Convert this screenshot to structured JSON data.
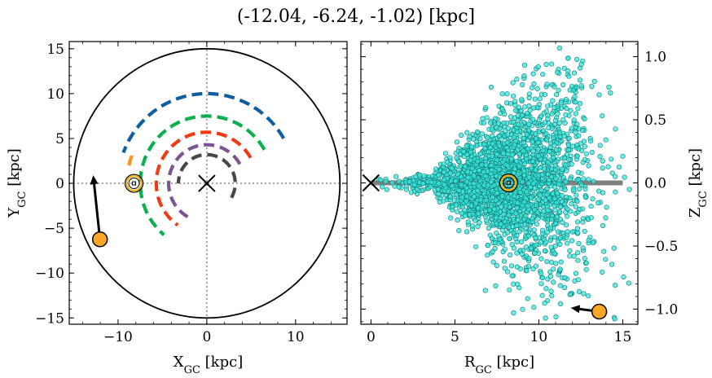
{
  "title": "(-12.04, -6.24, -1.02) [kpc]",
  "chart_data": [
    {
      "type": "line",
      "panel": "left",
      "xlabel": "X",
      "xlabel_sub": "GC",
      "xlabel_unit": " [kpc]",
      "ylabel": "Y",
      "ylabel_sub": "GC",
      "ylabel_unit": " [kpc]",
      "xlim": [
        -15.5,
        15.8
      ],
      "ylim": [
        -15.7,
        15.8
      ],
      "xticks": [
        -10,
        0,
        10
      ],
      "xtick_labels": [
        "−10",
        "0",
        "10"
      ],
      "yticks": [
        -15,
        -10,
        -5,
        0,
        5,
        10,
        15
      ],
      "ytick_labels": [
        "−15",
        "−10",
        "−5",
        "0",
        "5",
        "10",
        "15"
      ],
      "boundary_circle": {
        "center": [
          0,
          0
        ],
        "radius": 15,
        "color": "#000000"
      },
      "reference_lines": {
        "x": 0,
        "y": 0,
        "style": "dotted",
        "color": "#888888"
      },
      "galactic_center": {
        "x": 0,
        "y": 0,
        "marker": "x"
      },
      "sun": {
        "x": -8.2,
        "y": 0,
        "marker": "circled-dot",
        "color": "#ffb000"
      },
      "object": {
        "x": -12.04,
        "y": -6.24,
        "color": "#f9a825"
      },
      "object_velocity_arrow": {
        "from": [
          -12.04,
          -6.24
        ],
        "to": [
          -12.8,
          0.9
        ]
      },
      "series": [
        {
          "color": "#0f5fa0",
          "center": [
            0,
            0
          ],
          "radius": 10.0,
          "theta_deg": [
            30,
            160
          ]
        },
        {
          "color": "#0bb04c",
          "center": [
            0,
            0
          ],
          "radius": 7.5,
          "theta_deg": [
            30,
            230
          ]
        },
        {
          "color": "#ef3a16",
          "center": [
            0,
            0
          ],
          "radius": 5.7,
          "theta_deg": [
            30,
            235
          ]
        },
        {
          "color": "#7d5394",
          "center": [
            0,
            0
          ],
          "radius": 4.3,
          "theta_deg": [
            30,
            240
          ]
        },
        {
          "color": "#474747",
          "center": [
            0,
            0
          ],
          "radius": 3.2,
          "theta_deg": [
            -30,
            180
          ]
        },
        {
          "color": "#f7941d",
          "center": [
            0,
            0
          ],
          "radius": 9.0,
          "theta_deg": [
            160,
            167
          ]
        }
      ]
    },
    {
      "type": "scatter",
      "panel": "right",
      "xlabel": "R",
      "xlabel_sub": "GC",
      "xlabel_unit": " [kpc]",
      "ylabel": "Z",
      "ylabel_sub": "GC",
      "ylabel_unit": " [kpc]",
      "xlim": [
        -0.6,
        15.9
      ],
      "ylim": [
        -1.12,
        1.12
      ],
      "xticks": [
        0,
        5,
        10,
        15
      ],
      "xtick_labels": [
        "0",
        "5",
        "10",
        "15"
      ],
      "yticks": [
        -1.0,
        -0.5,
        0.0,
        0.5,
        1.0
      ],
      "ytick_labels": [
        "−1.0",
        "−0.5",
        "0.0",
        "0.5",
        "1.0"
      ],
      "point_color": "#39e6dc",
      "point_edge": "#0f7a74",
      "point_count": 2400,
      "disk_line": {
        "y": 0,
        "x": [
          0,
          15
        ],
        "color": "#808080"
      },
      "galactic_center": {
        "x": 0,
        "y": 0,
        "marker": "x"
      },
      "sun": {
        "x": 8.2,
        "y": 0,
        "marker": "circled-dot",
        "color": "#ffb000"
      },
      "object": {
        "x": 13.6,
        "y": -1.02,
        "color": "#f9a825"
      },
      "object_velocity_arrow": {
        "from": [
          13.6,
          -1.02
        ],
        "to": [
          11.9,
          -0.99
        ]
      }
    }
  ]
}
